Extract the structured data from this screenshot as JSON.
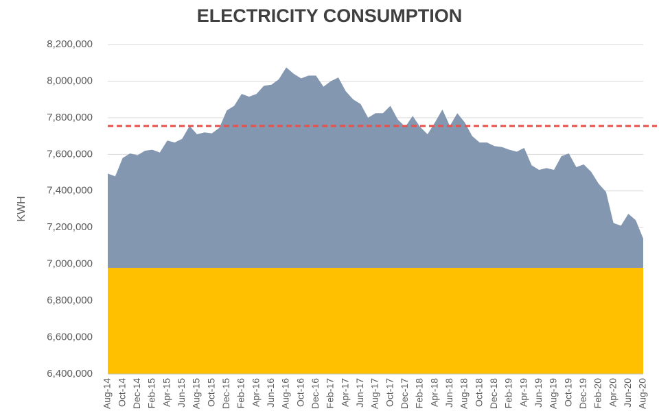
{
  "chart_data": {
    "type": "area",
    "title": "ELECTRICITY CONSUMPTION",
    "y_label": "KWH",
    "categories": [
      "Aug-14",
      null,
      "Oct-14",
      null,
      "Dec-14",
      null,
      "Feb-15",
      null,
      "Apr-15",
      null,
      "Jun-15",
      null,
      "Aug-15",
      null,
      "Oct-15",
      null,
      "Dec-15",
      null,
      "Feb-16",
      null,
      "Apr-16",
      null,
      "Jun-16",
      null,
      "Aug-16",
      null,
      "Oct-16",
      null,
      "Dec-16",
      null,
      "Feb-17",
      null,
      "Apr-17",
      null,
      "Jun-17",
      null,
      "Aug-17",
      null,
      "Oct-17",
      null,
      "Dec-17",
      null,
      "Feb-18",
      null,
      "Apr-18",
      null,
      "Jun-18",
      null,
      "Aug-18",
      null,
      "Oct-18",
      null,
      "Dec-18",
      null,
      "Feb-19",
      null,
      "Apr-19",
      null,
      "Jun-19",
      null,
      "Aug-19",
      null,
      "Oct-19",
      null,
      "Dec-19",
      null,
      "Feb-20",
      null,
      "Apr-20",
      null,
      "Jun-20",
      null,
      "Aug-20"
    ],
    "series": [
      {
        "color": "#8497b0",
        "values": [
          7495000,
          7480000,
          7580000,
          7605000,
          7595000,
          7620000,
          7625000,
          7610000,
          7675000,
          7665000,
          7685000,
          7755000,
          7710000,
          7720000,
          7715000,
          7745000,
          7840000,
          7865000,
          7930000,
          7915000,
          7930000,
          7975000,
          7980000,
          8010000,
          8075000,
          8040000,
          8015000,
          8030000,
          8030000,
          7970000,
          8000000,
          8020000,
          7945000,
          7900000,
          7875000,
          7800000,
          7825000,
          7825000,
          7865000,
          7790000,
          7750000,
          7810000,
          7750000,
          7710000,
          7775000,
          7845000,
          7755000,
          7825000,
          7775000,
          7700000,
          7665000,
          7665000,
          7645000,
          7640000,
          7625000,
          7615000,
          7635000,
          7540000,
          7515000,
          7525000,
          7515000,
          7590000,
          7605000,
          7530000,
          7545000,
          7505000,
          7440000,
          7395000,
          7225000,
          7210000,
          7275000,
          7240000,
          7140000
        ]
      },
      {
        "color": "#ffc000",
        "values": [
          6980000,
          6980000,
          6980000,
          6980000,
          6980000,
          6980000,
          6980000,
          6980000,
          6980000,
          6980000,
          6980000,
          6980000,
          6980000,
          6980000,
          6980000,
          6980000,
          6980000,
          6980000,
          6980000,
          6980000,
          6980000,
          6980000,
          6980000,
          6980000,
          6980000,
          6980000,
          6980000,
          6980000,
          6980000,
          6980000,
          6980000,
          6980000,
          6980000,
          6980000,
          6980000,
          6980000,
          6980000,
          6980000,
          6980000,
          6980000,
          6980000,
          6980000,
          6980000,
          6980000,
          6980000,
          6980000,
          6980000,
          6980000,
          6980000,
          6980000,
          6980000,
          6980000,
          6980000,
          6980000,
          6980000,
          6980000,
          6980000,
          6980000,
          6980000,
          6980000,
          6980000,
          6980000,
          6980000,
          6980000,
          6980000,
          6980000,
          6980000,
          6980000,
          6980000,
          6980000,
          6980000,
          6980000,
          6980000
        ]
      }
    ],
    "reference_line": {
      "value": 7755000,
      "color": "#e8504a",
      "style": "dashed"
    },
    "ylim": [
      6400000,
      8200000
    ],
    "yticks": [
      {
        "value": 6400000,
        "label": "6,400,000"
      },
      {
        "value": 6600000,
        "label": "6,600,000"
      },
      {
        "value": 6800000,
        "label": "6,800,000"
      },
      {
        "value": 7000000,
        "label": "7,000,000"
      },
      {
        "value": 7200000,
        "label": "7,200,000"
      },
      {
        "value": 7400000,
        "label": "7,400,000"
      },
      {
        "value": 7600000,
        "label": "7,600,000"
      },
      {
        "value": 7800000,
        "label": "7,800,000"
      },
      {
        "value": 8000000,
        "label": "8,000,000"
      },
      {
        "value": 8200000,
        "label": "8,200,000"
      }
    ],
    "grid": true
  }
}
